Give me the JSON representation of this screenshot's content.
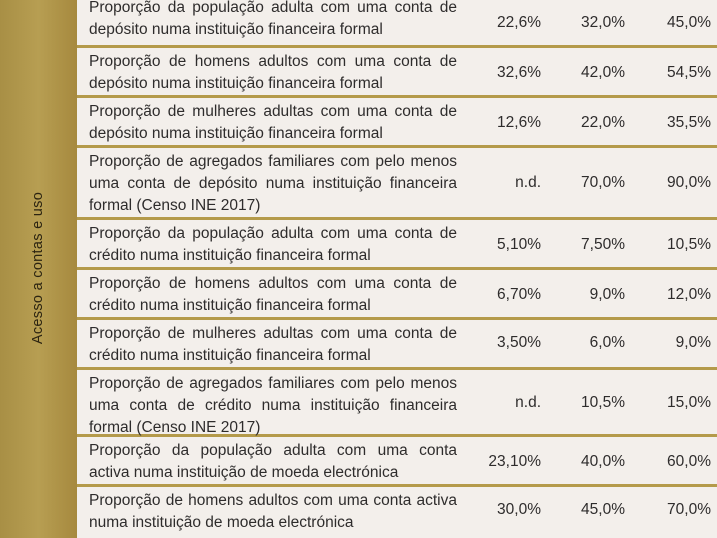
{
  "sidebar": {
    "label": "Acesso a contas e uso"
  },
  "rows": [
    {
      "desc": "Proporção da população adulta com uma conta de depósito numa instituição financeira formal",
      "v1": "22,6%",
      "v2": "32,0%",
      "v3": "45,0%"
    },
    {
      "desc": "Proporção de homens adultos com uma conta de depósito numa instituição financeira formal",
      "v1": "32,6%",
      "v2": "42,0%",
      "v3": "54,5%"
    },
    {
      "desc": "Proporção de mulheres adultas com uma conta de depósito numa instituição financeira formal",
      "v1": "12,6%",
      "v2": "22,0%",
      "v3": "35,5%"
    },
    {
      "desc": "Proporção de agregados familiares com pelo menos uma conta de depósito numa instituição financeira formal (Censo INE 2017)",
      "v1": "n.d.",
      "v2": "70,0%",
      "v3": "90,0%"
    },
    {
      "desc": "Proporção da população adulta com uma conta de crédito numa instituição financeira formal",
      "v1": "5,10%",
      "v2": "7,50%",
      "v3": "10,5%"
    },
    {
      "desc": "Proporção de homens adultos com uma conta de crédito numa instituição financeira formal",
      "v1": "6,70%",
      "v2": "9,0%",
      "v3": "12,0%"
    },
    {
      "desc": "Proporção de mulheres adultas com uma conta de crédito numa instituição financeira formal",
      "v1": "3,50%",
      "v2": "6,0%",
      "v3": "9,0%"
    },
    {
      "desc": "Proporção de agregados familiares com pelo menos uma conta de crédito numa instituição financeira formal (Censo INE 2017)",
      "v1": "n.d.",
      "v2": "10,5%",
      "v3": "15,0%"
    },
    {
      "desc": "Proporção da população adulta com uma conta activa numa instituição de moeda electrónica",
      "v1": "23,10%",
      "v2": "40,0%",
      "v3": "60,0%"
    },
    {
      "desc": "Proporção de homens adultos com uma conta activa numa instituição de moeda electrónica",
      "v1": "30,0%",
      "v2": "45,0%",
      "v3": "70,0%"
    }
  ]
}
